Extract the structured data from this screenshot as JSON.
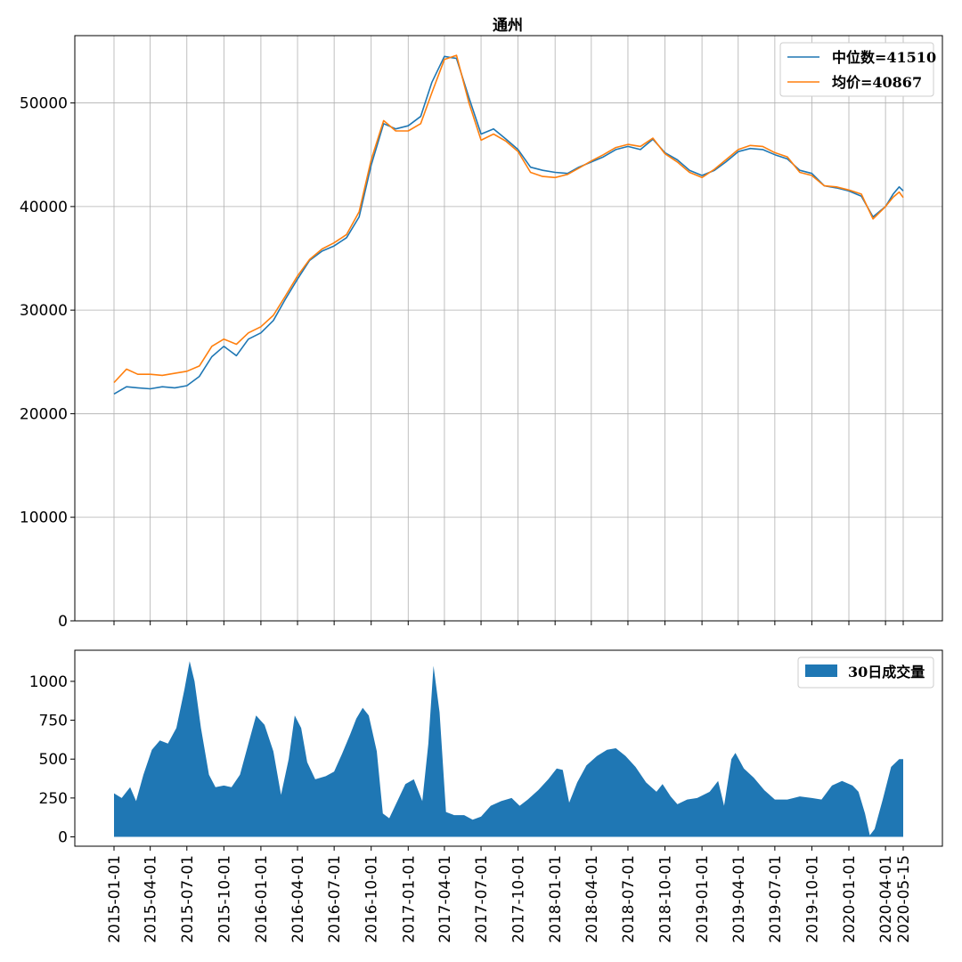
{
  "chart_data": [
    {
      "type": "line",
      "title": "通州",
      "ylim": [
        0,
        56500
      ],
      "yticks": [
        0,
        10000,
        20000,
        30000,
        40000,
        50000
      ],
      "grid": true,
      "legend_position": "top-right",
      "series": [
        {
          "name": "中位数=41510",
          "color": "#1f77b4",
          "points": [
            [
              "2015-01-01",
              21900
            ],
            [
              "2015-02-01",
              22600
            ],
            [
              "2015-03-01",
              22500
            ],
            [
              "2015-04-01",
              22400
            ],
            [
              "2015-05-01",
              22600
            ],
            [
              "2015-06-01",
              22500
            ],
            [
              "2015-07-01",
              22700
            ],
            [
              "2015-08-01",
              23600
            ],
            [
              "2015-09-01",
              25500
            ],
            [
              "2015-10-01",
              26500
            ],
            [
              "2015-11-01",
              25600
            ],
            [
              "2015-12-01",
              27200
            ],
            [
              "2016-01-01",
              27800
            ],
            [
              "2016-02-01",
              29000
            ],
            [
              "2016-03-01",
              31000
            ],
            [
              "2016-04-01",
              33000
            ],
            [
              "2016-05-01",
              34800
            ],
            [
              "2016-06-01",
              35700
            ],
            [
              "2016-07-01",
              36200
            ],
            [
              "2016-08-01",
              37000
            ],
            [
              "2016-09-01",
              39000
            ],
            [
              "2016-10-01",
              44000
            ],
            [
              "2016-11-01",
              48000
            ],
            [
              "2016-12-01",
              47500
            ],
            [
              "2017-01-01",
              47800
            ],
            [
              "2017-02-01",
              48700
            ],
            [
              "2017-03-01",
              52000
            ],
            [
              "2017-04-01",
              54500
            ],
            [
              "2017-05-01",
              54300
            ],
            [
              "2017-06-01",
              50500
            ],
            [
              "2017-07-01",
              47000
            ],
            [
              "2017-08-01",
              47500
            ],
            [
              "2017-09-01",
              46500
            ],
            [
              "2017-10-01",
              45500
            ],
            [
              "2017-11-01",
              43800
            ],
            [
              "2017-12-01",
              43500
            ],
            [
              "2018-01-01",
              43300
            ],
            [
              "2018-02-01",
              43200
            ],
            [
              "2018-03-01",
              43800
            ],
            [
              "2018-04-01",
              44300
            ],
            [
              "2018-05-01",
              44800
            ],
            [
              "2018-06-01",
              45500
            ],
            [
              "2018-07-01",
              45800
            ],
            [
              "2018-08-01",
              45500
            ],
            [
              "2018-09-01",
              46500
            ],
            [
              "2018-10-01",
              45200
            ],
            [
              "2018-11-01",
              44500
            ],
            [
              "2018-12-01",
              43500
            ],
            [
              "2019-01-01",
              43000
            ],
            [
              "2019-02-01",
              43500
            ],
            [
              "2019-03-01",
              44300
            ],
            [
              "2019-04-01",
              45300
            ],
            [
              "2019-05-01",
              45600
            ],
            [
              "2019-06-01",
              45500
            ],
            [
              "2019-07-01",
              45000
            ],
            [
              "2019-08-01",
              44600
            ],
            [
              "2019-09-01",
              43500
            ],
            [
              "2019-10-01",
              43200
            ],
            [
              "2019-11-01",
              42000
            ],
            [
              "2019-12-01",
              41800
            ],
            [
              "2020-01-01",
              41500
            ],
            [
              "2020-02-01",
              41000
            ],
            [
              "2020-03-01",
              39000
            ],
            [
              "2020-04-01",
              40000
            ],
            [
              "2020-04-20",
              41200
            ],
            [
              "2020-05-05",
              41900
            ],
            [
              "2020-05-15",
              41510
            ]
          ]
        },
        {
          "name": "均价=40867",
          "color": "#ff7f0e",
          "points": [
            [
              "2015-01-01",
              23000
            ],
            [
              "2015-02-01",
              24300
            ],
            [
              "2015-03-01",
              23800
            ],
            [
              "2015-04-01",
              23800
            ],
            [
              "2015-05-01",
              23700
            ],
            [
              "2015-06-01",
              23900
            ],
            [
              "2015-07-01",
              24100
            ],
            [
              "2015-08-01",
              24600
            ],
            [
              "2015-09-01",
              26500
            ],
            [
              "2015-10-01",
              27200
            ],
            [
              "2015-11-01",
              26700
            ],
            [
              "2015-12-01",
              27800
            ],
            [
              "2016-01-01",
              28400
            ],
            [
              "2016-02-01",
              29500
            ],
            [
              "2016-03-01",
              31300
            ],
            [
              "2016-04-01",
              33300
            ],
            [
              "2016-05-01",
              34900
            ],
            [
              "2016-06-01",
              35900
            ],
            [
              "2016-07-01",
              36500
            ],
            [
              "2016-08-01",
              37300
            ],
            [
              "2016-09-01",
              39500
            ],
            [
              "2016-10-01",
              44500
            ],
            [
              "2016-11-01",
              48300
            ],
            [
              "2016-12-01",
              47300
            ],
            [
              "2017-01-01",
              47300
            ],
            [
              "2017-02-01",
              48000
            ],
            [
              "2017-03-01",
              51000
            ],
            [
              "2017-04-01",
              54200
            ],
            [
              "2017-05-01",
              54600
            ],
            [
              "2017-06-01",
              50000
            ],
            [
              "2017-07-01",
              46400
            ],
            [
              "2017-08-01",
              47000
            ],
            [
              "2017-09-01",
              46300
            ],
            [
              "2017-10-01",
              45300
            ],
            [
              "2017-11-01",
              43300
            ],
            [
              "2017-12-01",
              42900
            ],
            [
              "2018-01-01",
              42800
            ],
            [
              "2018-02-01",
              43100
            ],
            [
              "2018-03-01",
              43700
            ],
            [
              "2018-04-01",
              44400
            ],
            [
              "2018-05-01",
              45000
            ],
            [
              "2018-06-01",
              45700
            ],
            [
              "2018-07-01",
              46000
            ],
            [
              "2018-08-01",
              45800
            ],
            [
              "2018-09-01",
              46600
            ],
            [
              "2018-10-01",
              45100
            ],
            [
              "2018-11-01",
              44300
            ],
            [
              "2018-12-01",
              43300
            ],
            [
              "2019-01-01",
              42800
            ],
            [
              "2019-02-01",
              43600
            ],
            [
              "2019-03-01",
              44500
            ],
            [
              "2019-04-01",
              45500
            ],
            [
              "2019-05-01",
              45900
            ],
            [
              "2019-06-01",
              45800
            ],
            [
              "2019-07-01",
              45200
            ],
            [
              "2019-08-01",
              44800
            ],
            [
              "2019-09-01",
              43300
            ],
            [
              "2019-10-01",
              43000
            ],
            [
              "2019-11-01",
              42000
            ],
            [
              "2019-12-01",
              41900
            ],
            [
              "2020-01-01",
              41600
            ],
            [
              "2020-02-01",
              41200
            ],
            [
              "2020-03-01",
              38800
            ],
            [
              "2020-04-01",
              40000
            ],
            [
              "2020-04-20",
              40900
            ],
            [
              "2020-05-05",
              41400
            ],
            [
              "2020-05-15",
              40867
            ]
          ]
        }
      ]
    },
    {
      "type": "area",
      "title": "",
      "ylim": [
        -60,
        1200
      ],
      "yticks": [
        0,
        250,
        500,
        750,
        1000
      ],
      "grid": false,
      "legend_position": "top-right",
      "xticks": [
        "2015-01-01",
        "2015-04-01",
        "2015-07-01",
        "2015-10-01",
        "2016-01-01",
        "2016-04-01",
        "2016-07-01",
        "2016-10-01",
        "2017-01-01",
        "2017-04-01",
        "2017-07-01",
        "2017-10-01",
        "2018-01-01",
        "2018-04-01",
        "2018-07-01",
        "2018-10-01",
        "2019-01-01",
        "2019-04-01",
        "2019-07-01",
        "2019-10-01",
        "2020-01-01",
        "2020-04-01",
        "2020-05-15"
      ],
      "series": [
        {
          "name": "30日成交量",
          "color": "#1f77b4",
          "points": [
            [
              "2015-01-01",
              280
            ],
            [
              "2015-01-20",
              250
            ],
            [
              "2015-02-10",
              320
            ],
            [
              "2015-02-25",
              230
            ],
            [
              "2015-03-15",
              400
            ],
            [
              "2015-04-05",
              560
            ],
            [
              "2015-04-25",
              620
            ],
            [
              "2015-05-15",
              600
            ],
            [
              "2015-06-05",
              700
            ],
            [
              "2015-06-25",
              950
            ],
            [
              "2015-07-08",
              1130
            ],
            [
              "2015-07-20",
              1000
            ],
            [
              "2015-08-05",
              700
            ],
            [
              "2015-08-25",
              400
            ],
            [
              "2015-09-10",
              320
            ],
            [
              "2015-10-01",
              330
            ],
            [
              "2015-10-20",
              320
            ],
            [
              "2015-11-10",
              400
            ],
            [
              "2015-12-01",
              600
            ],
            [
              "2015-12-20",
              780
            ],
            [
              "2016-01-10",
              720
            ],
            [
              "2016-02-01",
              550
            ],
            [
              "2016-02-20",
              270
            ],
            [
              "2016-03-10",
              500
            ],
            [
              "2016-03-25",
              780
            ],
            [
              "2016-04-10",
              700
            ],
            [
              "2016-04-25",
              480
            ],
            [
              "2016-05-15",
              370
            ],
            [
              "2016-06-10",
              390
            ],
            [
              "2016-07-01",
              420
            ],
            [
              "2016-07-20",
              530
            ],
            [
              "2016-08-10",
              660
            ],
            [
              "2016-08-25",
              760
            ],
            [
              "2016-09-10",
              830
            ],
            [
              "2016-09-25",
              780
            ],
            [
              "2016-10-15",
              550
            ],
            [
              "2016-10-30",
              150
            ],
            [
              "2016-11-15",
              120
            ],
            [
              "2016-12-05",
              230
            ],
            [
              "2016-12-25",
              340
            ],
            [
              "2017-01-15",
              370
            ],
            [
              "2017-02-05",
              230
            ],
            [
              "2017-02-20",
              600
            ],
            [
              "2017-03-05",
              1100
            ],
            [
              "2017-03-20",
              800
            ],
            [
              "2017-04-05",
              160
            ],
            [
              "2017-04-25",
              140
            ],
            [
              "2017-05-20",
              140
            ],
            [
              "2017-06-10",
              110
            ],
            [
              "2017-07-01",
              130
            ],
            [
              "2017-07-25",
              200
            ],
            [
              "2017-08-20",
              230
            ],
            [
              "2017-09-15",
              250
            ],
            [
              "2017-10-05",
              200
            ],
            [
              "2017-10-25",
              240
            ],
            [
              "2017-11-20",
              300
            ],
            [
              "2017-12-15",
              370
            ],
            [
              "2018-01-05",
              440
            ],
            [
              "2018-01-20",
              430
            ],
            [
              "2018-02-05",
              220
            ],
            [
              "2018-02-25",
              350
            ],
            [
              "2018-03-20",
              460
            ],
            [
              "2018-04-15",
              520
            ],
            [
              "2018-05-10",
              560
            ],
            [
              "2018-06-01",
              570
            ],
            [
              "2018-06-25",
              520
            ],
            [
              "2018-07-20",
              450
            ],
            [
              "2018-08-15",
              350
            ],
            [
              "2018-09-10",
              290
            ],
            [
              "2018-09-25",
              340
            ],
            [
              "2018-10-15",
              260
            ],
            [
              "2018-11-01",
              210
            ],
            [
              "2018-11-25",
              240
            ],
            [
              "2018-12-20",
              250
            ],
            [
              "2019-01-20",
              290
            ],
            [
              "2019-02-10",
              360
            ],
            [
              "2019-02-25",
              200
            ],
            [
              "2019-03-15",
              500
            ],
            [
              "2019-03-25",
              540
            ],
            [
              "2019-04-15",
              440
            ],
            [
              "2019-05-10",
              380
            ],
            [
              "2019-06-05",
              300
            ],
            [
              "2019-07-01",
              240
            ],
            [
              "2019-08-01",
              240
            ],
            [
              "2019-09-01",
              260
            ],
            [
              "2019-10-01",
              250
            ],
            [
              "2019-10-25",
              240
            ],
            [
              "2019-11-20",
              330
            ],
            [
              "2019-12-15",
              360
            ],
            [
              "2020-01-10",
              330
            ],
            [
              "2020-01-25",
              290
            ],
            [
              "2020-02-10",
              150
            ],
            [
              "2020-02-22",
              10
            ],
            [
              "2020-03-05",
              50
            ],
            [
              "2020-03-25",
              240
            ],
            [
              "2020-04-15",
              450
            ],
            [
              "2020-05-05",
              500
            ],
            [
              "2020-05-15",
              500
            ]
          ]
        }
      ]
    }
  ]
}
